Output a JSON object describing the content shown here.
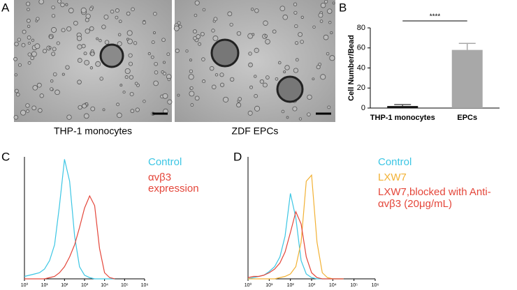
{
  "figure": {
    "panel_labels": [
      "A",
      "B",
      "C",
      "D"
    ],
    "images": [
      {
        "caption": "THP-1 monocytes"
      },
      {
        "caption": "ZDF EPCs"
      }
    ]
  },
  "chart_data": [
    {
      "type": "bar",
      "ylabel": "Cell Number/Bead",
      "categories": [
        "THP-1 monocytes",
        "EPCs"
      ],
      "values": [
        2,
        58
      ],
      "errors": [
        1.5,
        6.5
      ],
      "colors": [
        "#111111",
        "#a8a8a8"
      ],
      "ylim": [
        0,
        80
      ],
      "yticks": [
        0,
        20,
        40,
        60,
        80
      ],
      "annotation": "****"
    },
    {
      "type": "line",
      "xscale": "log",
      "xlim": [
        1,
        1000000
      ],
      "xticks": [
        {
          "value": 1,
          "label": "10⁰"
        },
        {
          "value": 10,
          "label": "10¹"
        },
        {
          "value": 100,
          "label": "10²"
        },
        {
          "value": 1000,
          "label": "10³"
        },
        {
          "value": 10000,
          "label": "10⁴"
        },
        {
          "value": 100000,
          "label": "10⁵"
        },
        {
          "value": 1000000,
          "label": "10⁶"
        }
      ],
      "ylim": [
        0,
        100
      ],
      "x": [
        1,
        1.8,
        3.2,
        5.6,
        10,
        18,
        32,
        56,
        100,
        180,
        320,
        560,
        1000,
        1800,
        3200,
        5600,
        10000,
        18000,
        32000
      ],
      "series": [
        {
          "name": "Control",
          "color": "#3cc6e4",
          "values": [
            2,
            3,
            4,
            5,
            8,
            15,
            28,
            60,
            98,
            80,
            35,
            10,
            3,
            1,
            0,
            0,
            0,
            0,
            0
          ]
        },
        {
          "name": "αvβ3 expression",
          "color": "#e4463a",
          "values": [
            0,
            0,
            0,
            0,
            0,
            1,
            2,
            5,
            10,
            18,
            28,
            42,
            58,
            68,
            60,
            25,
            5,
            1,
            0
          ]
        }
      ]
    },
    {
      "type": "line",
      "xscale": "log",
      "xlim": [
        1,
        1000000
      ],
      "xticks": [
        {
          "value": 1,
          "label": "10⁰"
        },
        {
          "value": 10,
          "label": "10¹"
        },
        {
          "value": 100,
          "label": "10²"
        },
        {
          "value": 1000,
          "label": "10³"
        },
        {
          "value": 10000,
          "label": "10⁴"
        },
        {
          "value": 100000,
          "label": "10⁵"
        },
        {
          "value": 1000000,
          "label": "10⁶"
        }
      ],
      "ylim": [
        0,
        100
      ],
      "x": [
        1,
        1.8,
        3.2,
        5.6,
        10,
        18,
        32,
        56,
        100,
        180,
        320,
        560,
        1000,
        1800,
        3200,
        5600,
        10000,
        18000,
        32000
      ],
      "series": [
        {
          "name": "Control",
          "color": "#3cc6e4",
          "values": [
            0,
            1,
            2,
            3,
            6,
            10,
            18,
            35,
            70,
            50,
            15,
            4,
            1,
            0,
            0,
            0,
            0,
            0,
            0
          ]
        },
        {
          "name": "LXW7",
          "color": "#f2b134",
          "values": [
            0,
            0,
            0,
            0,
            0,
            0,
            1,
            2,
            4,
            10,
            30,
            80,
            85,
            30,
            5,
            1,
            0,
            0,
            0
          ]
        },
        {
          "name": "LXW7,blocked with Anti-αvβ3 (20μg/mL)",
          "color": "#e4463a",
          "values": [
            1,
            2,
            2,
            3,
            5,
            8,
            13,
            22,
            38,
            55,
            45,
            18,
            5,
            1,
            0,
            0,
            0,
            0,
            0
          ]
        }
      ]
    }
  ]
}
